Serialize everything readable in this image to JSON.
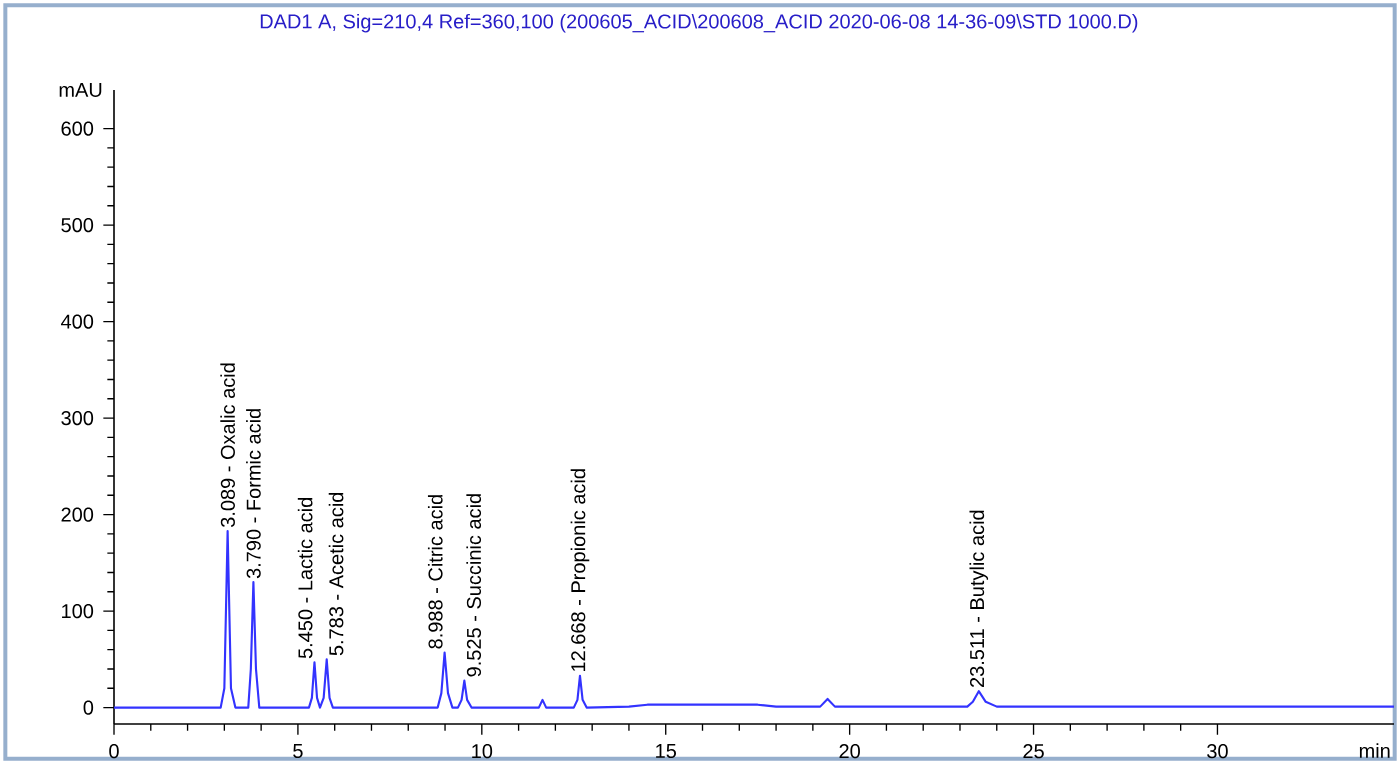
{
  "chart_data": {
    "type": "line",
    "title": "DAD1 A, Sig=210,4 Ref=360,100 (200605_ACID\\200608_ACID 2020-06-08 14-36-09\\STD 1000.D)",
    "xlabel": "min",
    "ylabel": "mAU",
    "xlim": [
      0,
      34.8
    ],
    "ylim": [
      -17,
      640
    ],
    "xticks": [
      0,
      5,
      10,
      15,
      20,
      25,
      30
    ],
    "yticks": [
      0,
      100,
      200,
      300,
      400,
      500,
      600
    ],
    "grid": false,
    "marker": "none",
    "line_style": "solid",
    "series": [
      {
        "color": "#3333ff",
        "x": [
          0,
          2.9,
          3.0,
          3.089,
          3.18,
          3.3,
          3.65,
          3.72,
          3.79,
          3.86,
          3.95,
          5.3,
          5.38,
          5.45,
          5.52,
          5.6,
          5.7,
          5.783,
          5.86,
          5.95,
          8.8,
          8.9,
          8.988,
          9.08,
          9.2,
          9.35,
          9.45,
          9.525,
          9.6,
          9.72,
          11.55,
          11.65,
          11.75,
          12.5,
          12.6,
          12.668,
          12.74,
          12.85,
          14,
          14.5,
          17.5,
          18,
          19.2,
          19.4,
          19.6,
          21,
          23.2,
          23.35,
          23.511,
          23.7,
          24,
          31.5,
          34.8
        ],
        "values": [
          0,
          0,
          20,
          183,
          20,
          0,
          0,
          40,
          130,
          40,
          0,
          0,
          10,
          47,
          10,
          0,
          10,
          50,
          10,
          0,
          0,
          15,
          57,
          15,
          0,
          0,
          8,
          28,
          8,
          0,
          0,
          8,
          0,
          0,
          8,
          33,
          8,
          0,
          1,
          3,
          3,
          1,
          1,
          9,
          1,
          1,
          1,
          6,
          17,
          6,
          1,
          1,
          1
        ]
      }
    ],
    "annotations": [
      {
        "text": "3.089 -  Oxalic acid",
        "x": 3.089,
        "y": 183
      },
      {
        "text": "3.790 -  Formic acid",
        "x": 3.79,
        "y": 130
      },
      {
        "text": "5.450 -  Lactic acid",
        "x": 5.45,
        "y": 47
      },
      {
        "text": "5.783 -  Acetic acid",
        "x": 5.783,
        "y": 50
      },
      {
        "text": "8.988 -  Citric acid",
        "x": 8.988,
        "y": 57
      },
      {
        "text": "9.525 -  Succinic acid",
        "x": 9.525,
        "y": 28
      },
      {
        "text": "12.668 -  Propionic acid",
        "x": 12.668,
        "y": 33
      },
      {
        "text": "23.511 -  Butylic acid",
        "x": 23.511,
        "y": 17
      }
    ]
  }
}
